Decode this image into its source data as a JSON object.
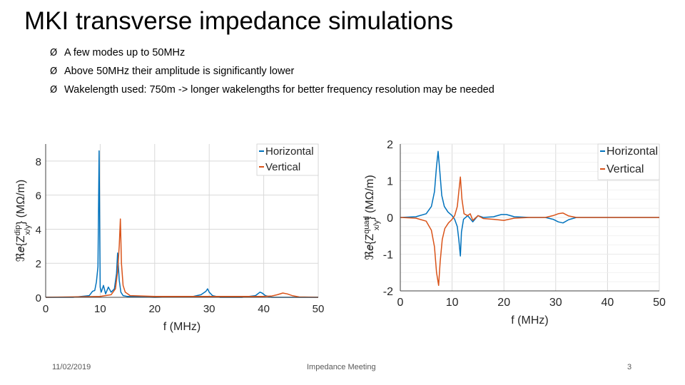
{
  "slide": {
    "title": "MKI transverse impedance simulations",
    "bullets": [
      "A few modes up to 50MHz",
      "Above 50MHz their amplitude is significantly lower",
      "Wakelength used: 750m -> longer wakelengths for better frequency resolution may be needed"
    ],
    "bullet_glyph": "Ø",
    "footer": {
      "date": "11/02/2019",
      "center": "Impedance Meeting",
      "page": "3"
    }
  },
  "colors": {
    "horizontal": "#0072BD",
    "vertical": "#D95319",
    "grid": "#d9d9d9"
  },
  "chart_data": [
    {
      "type": "line",
      "xlabel": "f (MHz)",
      "ylabel": {
        "prefix": "ℜ𝑒{Z",
        "sup": "dip",
        "sub": "x/y",
        "suffix": "} (MΩ/m)"
      },
      "xlim": [
        0,
        50
      ],
      "ylim": [
        0,
        9
      ],
      "xticks": [
        0,
        10,
        20,
        30,
        40,
        50
      ],
      "yticks": [
        0,
        2,
        4,
        6,
        8
      ],
      "series": [
        {
          "name": "Horizontal",
          "color": "#0072BD",
          "x": [
            0,
            5,
            8,
            8.6,
            9,
            9.3,
            9.6,
            9.8,
            10.0,
            10.2,
            10.6,
            11,
            11.5,
            12,
            12.6,
            13.0,
            13.2,
            13.5,
            13.8,
            14.2,
            15,
            20,
            27,
            28.5,
            29.4,
            29.7,
            30.0,
            30.6,
            32,
            36,
            38.5,
            39.3,
            39.7,
            40.3,
            41.5,
            45,
            50
          ],
          "y": [
            0,
            0,
            0.1,
            0.35,
            0.4,
            0.9,
            1.8,
            8.6,
            0.6,
            0.3,
            0.7,
            0.2,
            0.6,
            0.3,
            0.5,
            1.4,
            2.6,
            1.0,
            0.3,
            0.1,
            0.05,
            0,
            0.05,
            0.15,
            0.35,
            0.5,
            0.3,
            0.1,
            0,
            0,
            0.1,
            0.3,
            0.25,
            0.1,
            0,
            0,
            0
          ]
        },
        {
          "name": "Vertical",
          "color": "#D95319",
          "x": [
            0,
            10,
            12,
            12.8,
            13.2,
            13.5,
            13.7,
            13.9,
            14.2,
            14.6,
            15.5,
            20,
            30,
            40,
            41.5,
            42.5,
            43.5,
            44.3,
            45.2,
            46.5,
            50
          ],
          "y": [
            0,
            0.05,
            0.15,
            0.5,
            1.5,
            3.0,
            4.6,
            2.0,
            0.7,
            0.3,
            0.1,
            0.05,
            0.05,
            0.05,
            0.08,
            0.15,
            0.25,
            0.2,
            0.1,
            0.02,
            0
          ]
        }
      ],
      "legend": "top-right"
    },
    {
      "type": "line",
      "xlabel": "f (MHz)",
      "ylabel": {
        "prefix": "ℜ𝑒{Z",
        "sup": "quad",
        "sub": "x/y",
        "suffix": "} (MΩ/m)"
      },
      "xlim": [
        0,
        50
      ],
      "ylim": [
        -2,
        2
      ],
      "xticks": [
        0,
        10,
        20,
        30,
        40,
        50
      ],
      "yticks": [
        -2,
        -1,
        0,
        1,
        2
      ],
      "series": [
        {
          "name": "Horizontal",
          "color": "#0072BD",
          "x": [
            0,
            3,
            5,
            6,
            6.6,
            7.0,
            7.3,
            7.6,
            8.0,
            8.5,
            9.2,
            10,
            10.5,
            11.0,
            11.3,
            11.6,
            11.8,
            12.2,
            13,
            14,
            15,
            16,
            18,
            19.5,
            20.5,
            22,
            25,
            28,
            29.5,
            30.5,
            31.4,
            32.5,
            34,
            38,
            45,
            50
          ],
          "y": [
            0,
            0.02,
            0.1,
            0.3,
            0.7,
            1.4,
            1.8,
            1.3,
            0.6,
            0.3,
            0.15,
            0.05,
            -0.05,
            -0.25,
            -0.6,
            -1.05,
            -0.4,
            -0.05,
            0.05,
            -0.12,
            0.05,
            0,
            0.02,
            0.08,
            0.08,
            0.02,
            0,
            0,
            -0.05,
            -0.12,
            -0.15,
            -0.06,
            0,
            0,
            0,
            0
          ]
        },
        {
          "name": "Vertical",
          "color": "#D95319",
          "x": [
            0,
            3,
            5,
            6,
            6.6,
            7.0,
            7.4,
            7.7,
            8.1,
            8.6,
            9.3,
            10,
            10.5,
            11.0,
            11.3,
            11.6,
            11.9,
            12.3,
            13,
            13.5,
            14,
            15,
            16,
            18,
            20,
            22,
            25,
            28,
            29.5,
            30.5,
            31.4,
            32.5,
            34,
            38,
            45,
            50
          ],
          "y": [
            0,
            -0.02,
            -0.1,
            -0.35,
            -0.8,
            -1.5,
            -1.85,
            -1.2,
            -0.6,
            -0.3,
            -0.15,
            -0.05,
            0.05,
            0.3,
            0.7,
            1.1,
            0.5,
            0.1,
            0.05,
            0.1,
            -0.08,
            0.05,
            -0.03,
            -0.05,
            -0.08,
            -0.02,
            0,
            0,
            0.05,
            0.1,
            0.12,
            0.04,
            0,
            0,
            0,
            0
          ]
        }
      ],
      "legend": "top-right"
    }
  ]
}
